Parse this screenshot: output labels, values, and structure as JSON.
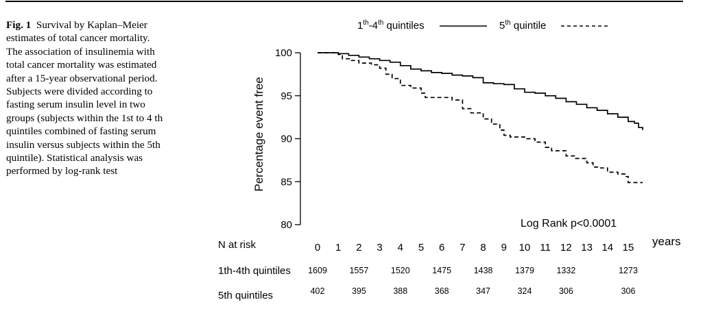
{
  "caption": {
    "label": "Fig. 1",
    "text": "Survival by Kaplan–Meier estimates of total cancer mortality. The association of insulinemia with total cancer mortality was estimated after a 15-year observational period. Subjects were divided according to fasting serum insulin level in two groups (subjects within the 1st to 4 th quintiles combined of fasting serum insulin versus subjects within the 5th quintile). Statistical analysis was performed by log-rank test"
  },
  "chart_data": {
    "type": "line",
    "title": "",
    "xlabel": "years",
    "ylabel": "Percentage event free",
    "xlim": [
      0,
      16
    ],
    "ylim": [
      80,
      100
    ],
    "xticks": [
      0,
      1,
      2,
      3,
      4,
      5,
      6,
      7,
      8,
      9,
      10,
      11,
      12,
      13,
      14,
      15
    ],
    "yticks": [
      80,
      85,
      90,
      95,
      100
    ],
    "annotation": "Log Rank p<0.0001",
    "legend": {
      "position": "top",
      "items": [
        {
          "label_base": "1",
          "label_sup": "th",
          "label_mid": "-4",
          "label_sup2": "th",
          "label_end": " quintiles",
          "style": "solid"
        },
        {
          "label_base": "5",
          "label_sup": "th",
          "label_end": " quintile",
          "style": "dashed"
        }
      ]
    },
    "series": [
      {
        "name": "1th-4th quintiles",
        "style": "solid",
        "x": [
          0,
          0.6,
          1,
          1.5,
          2,
          2.5,
          3,
          3.5,
          4,
          4.5,
          5,
          5.5,
          6,
          6.5,
          7,
          7.5,
          8,
          8.5,
          9,
          9.5,
          10,
          10.5,
          11,
          11.5,
          12,
          12.5,
          13,
          13.5,
          14,
          14.5,
          15,
          15.3,
          15.5,
          15.7
        ],
        "y": [
          100,
          100,
          99.9,
          99.7,
          99.5,
          99.3,
          99.1,
          98.9,
          98.5,
          98.1,
          97.9,
          97.7,
          97.6,
          97.4,
          97.3,
          97.1,
          96.5,
          96.4,
          96.3,
          95.8,
          95.4,
          95.3,
          95.0,
          94.7,
          94.3,
          94.0,
          93.6,
          93.3,
          92.9,
          92.5,
          92.0,
          91.8,
          91.3,
          91.0
        ]
      },
      {
        "name": "5th quintile",
        "style": "dashed",
        "x": [
          0,
          0.6,
          1,
          1.2,
          1.6,
          2,
          2.6,
          3,
          3.3,
          3.6,
          4,
          4.5,
          5,
          5.2,
          6,
          6.5,
          7,
          7.4,
          8,
          8.4,
          8.8,
          9,
          9.3,
          10,
          10.5,
          11,
          11.3,
          12,
          12.4,
          13,
          13.3,
          13.6,
          14,
          14.5,
          14.9,
          15.0,
          15.7
        ],
        "y": [
          100,
          100,
          99.8,
          99.3,
          99.1,
          98.8,
          98.6,
          98.2,
          97.5,
          97.0,
          96.2,
          95.9,
          95.3,
          94.8,
          94.8,
          94.5,
          93.5,
          93.0,
          92.3,
          91.7,
          91.0,
          90.4,
          90.2,
          90.0,
          89.6,
          89.0,
          88.6,
          88.0,
          87.7,
          87.2,
          86.7,
          86.6,
          86.1,
          85.9,
          85.6,
          84.9,
          84.9
        ]
      }
    ],
    "risk_table": {
      "header": "N at risk",
      "rows": [
        {
          "label": "1th-4th quintiles",
          "x": [
            0,
            2,
            4,
            6,
            8,
            10,
            12,
            15
          ],
          "values": [
            "1609",
            "1557",
            "1520",
            "1475",
            "1438",
            "1379",
            "1332",
            "1273"
          ]
        },
        {
          "label": "5th quintiles",
          "x": [
            0,
            2,
            4,
            6,
            8,
            10,
            12,
            15
          ],
          "values": [
            "402",
            "395",
            "388",
            "368",
            "347",
            "324",
            "306",
            "306"
          ]
        }
      ]
    }
  }
}
